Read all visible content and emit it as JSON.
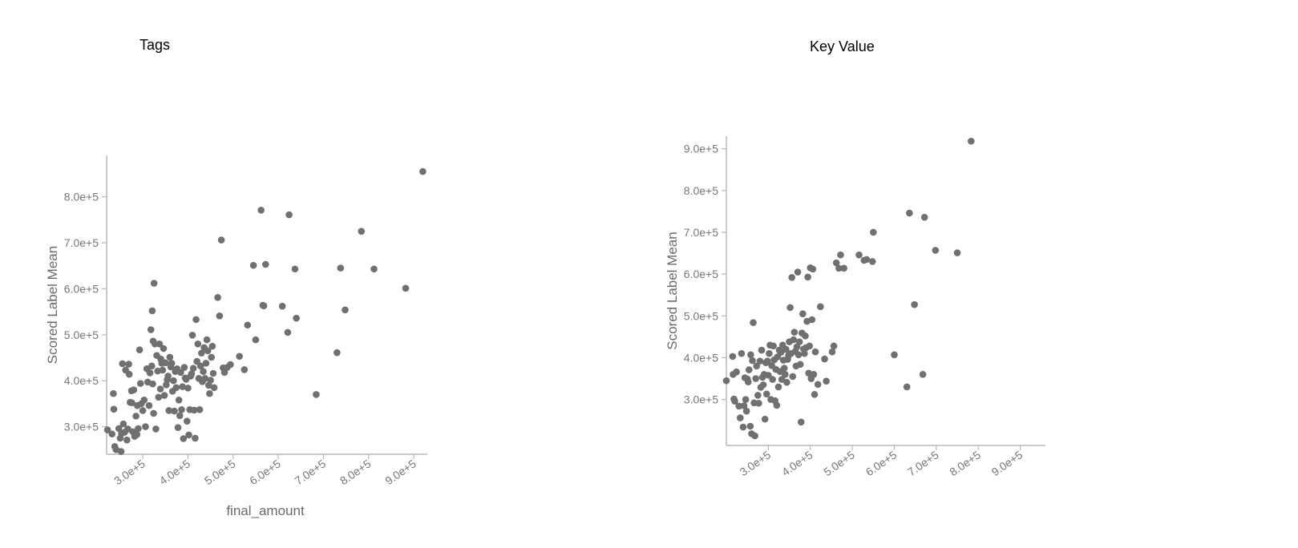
{
  "chart_data": [
    {
      "type": "scatter",
      "title": "Tags",
      "xlabel": "final_amount",
      "ylabel": "Scored Label Mean",
      "xlim": [
        220000,
        930000
      ],
      "ylim": [
        240000,
        890000
      ],
      "x_ticks": [
        300000,
        400000,
        500000,
        600000,
        700000,
        800000,
        900000
      ],
      "x_tick_labels": [
        "3.0e+5",
        "4.0e+5",
        "5.0e+5",
        "6.0e+5",
        "7.0e+5",
        "8.0e+5",
        "9.0e+5"
      ],
      "y_ticks": [
        300000,
        400000,
        500000,
        600000,
        700000,
        800000
      ],
      "y_tick_labels": [
        "3.0e+5",
        "4.0e+5",
        "5.0e+5",
        "6.0e+5",
        "7.0e+5",
        "8.0e+5"
      ],
      "grid": false,
      "points": [
        [
          222000,
          293000
        ],
        [
          232000,
          284000
        ],
        [
          235000,
          372000
        ],
        [
          236000,
          338000
        ],
        [
          238000,
          257000
        ],
        [
          241000,
          250000
        ],
        [
          247000,
          296000
        ],
        [
          250000,
          275000
        ],
        [
          252000,
          246000
        ],
        [
          253000,
          285000
        ],
        [
          255000,
          437000
        ],
        [
          257000,
          306000
        ],
        [
          260000,
          288000
        ],
        [
          262000,
          423000
        ],
        [
          265000,
          271000
        ],
        [
          267000,
          295000
        ],
        [
          269000,
          436000
        ],
        [
          270000,
          414000
        ],
        [
          272000,
          353000
        ],
        [
          275000,
          378000
        ],
        [
          276000,
          352000
        ],
        [
          278000,
          289000
        ],
        [
          280000,
          380000
        ],
        [
          282000,
          279000
        ],
        [
          285000,
          323000
        ],
        [
          287000,
          283000
        ],
        [
          288000,
          346000
        ],
        [
          290000,
          296000
        ],
        [
          293000,
          467000
        ],
        [
          295000,
          394000
        ],
        [
          297000,
          350000
        ],
        [
          300000,
          335000
        ],
        [
          303000,
          358000
        ],
        [
          306000,
          300000
        ],
        [
          309000,
          426000
        ],
        [
          311000,
          397000
        ],
        [
          314000,
          346000
        ],
        [
          316000,
          417000
        ],
        [
          318000,
          511000
        ],
        [
          320000,
          432000
        ],
        [
          321000,
          552000
        ],
        [
          322000,
          393000
        ],
        [
          323000,
          486000
        ],
        [
          324000,
          329000
        ],
        [
          325000,
          612000
        ],
        [
          327000,
          480000
        ],
        [
          329000,
          295000
        ],
        [
          331000,
          455000
        ],
        [
          333000,
          421000
        ],
        [
          335000,
          364000
        ],
        [
          337000,
          480000
        ],
        [
          339000,
          382000
        ],
        [
          340000,
          447000
        ],
        [
          342000,
          438000
        ],
        [
          344000,
          423000
        ],
        [
          346000,
          470000
        ],
        [
          348000,
          368000
        ],
        [
          350000,
          439000
        ],
        [
          352000,
          391000
        ],
        [
          354000,
          402000
        ],
        [
          356000,
          410000
        ],
        [
          358000,
          335000
        ],
        [
          360000,
          451000
        ],
        [
          362000,
          430000
        ],
        [
          364000,
          438000
        ],
        [
          366000,
          377000
        ],
        [
          368000,
          400000
        ],
        [
          370000,
          334000
        ],
        [
          372000,
          420000
        ],
        [
          374000,
          385000
        ],
        [
          376000,
          426000
        ],
        [
          378000,
          298000
        ],
        [
          380000,
          358000
        ],
        [
          382000,
          324000
        ],
        [
          384000,
          418000
        ],
        [
          386000,
          337000
        ],
        [
          388000,
          387000
        ],
        [
          390000,
          274000
        ],
        [
          392000,
          429000
        ],
        [
          394000,
          406000
        ],
        [
          396000,
          403000
        ],
        [
          398000,
          312000
        ],
        [
          400000,
          384000
        ],
        [
          402000,
          282000
        ],
        [
          404000,
          337000
        ],
        [
          406000,
          410000
        ],
        [
          408000,
          415000
        ],
        [
          410000,
          499000
        ],
        [
          412000,
          427000
        ],
        [
          414000,
          336000
        ],
        [
          416000,
          275000
        ],
        [
          418000,
          533000
        ],
        [
          420000,
          442000
        ],
        [
          422000,
          480000
        ],
        [
          424000,
          405000
        ],
        [
          426000,
          337000
        ],
        [
          428000,
          432000
        ],
        [
          430000,
          460000
        ],
        [
          432000,
          398000
        ],
        [
          434000,
          420000
        ],
        [
          436000,
          472000
        ],
        [
          438000,
          405000
        ],
        [
          440000,
          438000
        ],
        [
          442000,
          489000
        ],
        [
          444000,
          465000
        ],
        [
          446000,
          390000
        ],
        [
          448000,
          372000
        ],
        [
          450000,
          401000
        ],
        [
          452000,
          451000
        ],
        [
          454000,
          475000
        ],
        [
          456000,
          416000
        ],
        [
          458000,
          385000
        ],
        [
          466000,
          581000
        ],
        [
          470000,
          541000
        ],
        [
          474000,
          706000
        ],
        [
          478000,
          428000
        ],
        [
          481000,
          418000
        ],
        [
          487000,
          429000
        ],
        [
          494000,
          435000
        ],
        [
          514000,
          453000
        ],
        [
          525000,
          424000
        ],
        [
          532000,
          521000
        ],
        [
          545000,
          651000
        ],
        [
          550000,
          489000
        ],
        [
          562000,
          771000
        ],
        [
          566000,
          564000
        ],
        [
          568000,
          563000
        ],
        [
          572000,
          653000
        ],
        [
          609000,
          562000
        ],
        [
          621000,
          505000
        ],
        [
          624000,
          761000
        ],
        [
          637000,
          643000
        ],
        [
          640000,
          536000
        ],
        [
          684000,
          370000
        ],
        [
          730000,
          461000
        ],
        [
          738000,
          645000
        ],
        [
          748000,
          554000
        ],
        [
          784000,
          725000
        ],
        [
          812000,
          643000
        ],
        [
          882000,
          601000
        ],
        [
          920000,
          855000
        ]
      ]
    },
    {
      "type": "scatter",
      "title": "Key Value",
      "xlabel": "",
      "ylabel": "Scored Label Mean",
      "xlim": [
        200000,
        960000
      ],
      "ylim": [
        190000,
        930000
      ],
      "x_ticks": [
        300000,
        400000,
        500000,
        600000,
        700000,
        800000,
        900000
      ],
      "x_tick_labels": [
        "3.0e+5",
        "4.0e+5",
        "5.0e+5",
        "6.0e+5",
        "7.0e+5",
        "8.0e+5",
        "9.0e+5"
      ],
      "y_ticks": [
        300000,
        400000,
        500000,
        600000,
        700000,
        800000,
        900000
      ],
      "y_tick_labels": [
        "3.0e+5",
        "4.0e+5",
        "5.0e+5",
        "6.0e+5",
        "7.0e+5",
        "8.0e+5",
        "9.0e+5"
      ],
      "grid": false,
      "points": [
        [
          200000,
          345000
        ],
        [
          215000,
          403000
        ],
        [
          216000,
          360000
        ],
        [
          218000,
          301000
        ],
        [
          220000,
          296000
        ],
        [
          224000,
          366000
        ],
        [
          230000,
          284000
        ],
        [
          233000,
          256000
        ],
        [
          236000,
          410000
        ],
        [
          240000,
          234000
        ],
        [
          242000,
          285000
        ],
        [
          244000,
          352000
        ],
        [
          246000,
          300000
        ],
        [
          248000,
          272000
        ],
        [
          250000,
          349000
        ],
        [
          252000,
          342000
        ],
        [
          254000,
          371000
        ],
        [
          257000,
          236000
        ],
        [
          258000,
          407000
        ],
        [
          260000,
          218000
        ],
        [
          262000,
          393000
        ],
        [
          264000,
          484000
        ],
        [
          266000,
          292000
        ],
        [
          268000,
          213000
        ],
        [
          270000,
          350000
        ],
        [
          272000,
          380000
        ],
        [
          275000,
          310000
        ],
        [
          277000,
          291000
        ],
        [
          280000,
          392000
        ],
        [
          282000,
          329000
        ],
        [
          284000,
          418000
        ],
        [
          286000,
          353000
        ],
        [
          288000,
          335000
        ],
        [
          290000,
          360000
        ],
        [
          292000,
          253000
        ],
        [
          294000,
          388000
        ],
        [
          296000,
          313000
        ],
        [
          298000,
          392000
        ],
        [
          300000,
          358000
        ],
        [
          302000,
          410000
        ],
        [
          304000,
          430000
        ],
        [
          306000,
          300000
        ],
        [
          308000,
          381000
        ],
        [
          310000,
          348000
        ],
        [
          312000,
          428000
        ],
        [
          314000,
          395000
        ],
        [
          316000,
          297000
        ],
        [
          318000,
          372000
        ],
        [
          320000,
          286000
        ],
        [
          322000,
          402000
        ],
        [
          324000,
          330000
        ],
        [
          326000,
          418000
        ],
        [
          328000,
          367000
        ],
        [
          330000,
          413000
        ],
        [
          332000,
          348000
        ],
        [
          334000,
          430000
        ],
        [
          336000,
          394000
        ],
        [
          338000,
          375000
        ],
        [
          340000,
          360000
        ],
        [
          342000,
          420000
        ],
        [
          344000,
          341000
        ],
        [
          346000,
          396000
        ],
        [
          348000,
          405000
        ],
        [
          350000,
          438000
        ],
        [
          352000,
          520000
        ],
        [
          354000,
          410000
        ],
        [
          356000,
          592000
        ],
        [
          358000,
          355000
        ],
        [
          360000,
          443000
        ],
        [
          362000,
          461000
        ],
        [
          364000,
          415000
        ],
        [
          366000,
          380000
        ],
        [
          368000,
          426000
        ],
        [
          370000,
          605000
        ],
        [
          372000,
          407000
        ],
        [
          374000,
          438000
        ],
        [
          376000,
          384000
        ],
        [
          378000,
          246000
        ],
        [
          380000,
          459000
        ],
        [
          382000,
          505000
        ],
        [
          384000,
          421000
        ],
        [
          386000,
          410000
        ],
        [
          388000,
          452000
        ],
        [
          390000,
          424000
        ],
        [
          392000,
          487000
        ],
        [
          394000,
          593000
        ],
        [
          396000,
          363000
        ],
        [
          398000,
          428000
        ],
        [
          400000,
          615000
        ],
        [
          402000,
          350000
        ],
        [
          404000,
          491000
        ],
        [
          406000,
          612000
        ],
        [
          408000,
          360000
        ],
        [
          410000,
          312000
        ],
        [
          412000,
          414000
        ],
        [
          418000,
          336000
        ],
        [
          424000,
          522000
        ],
        [
          434000,
          397000
        ],
        [
          438000,
          344000
        ],
        [
          452000,
          414000
        ],
        [
          456000,
          428000
        ],
        [
          462000,
          627000
        ],
        [
          468000,
          614000
        ],
        [
          472000,
          646000
        ],
        [
          480000,
          614000
        ],
        [
          516000,
          646000
        ],
        [
          528000,
          633000
        ],
        [
          534000,
          635000
        ],
        [
          548000,
          630000
        ],
        [
          550000,
          700000
        ],
        [
          600000,
          407000
        ],
        [
          630000,
          330000
        ],
        [
          636000,
          746000
        ],
        [
          648000,
          527000
        ],
        [
          668000,
          360000
        ],
        [
          672000,
          736000
        ],
        [
          698000,
          657000
        ],
        [
          750000,
          651000
        ],
        [
          783000,
          918000
        ]
      ]
    }
  ]
}
